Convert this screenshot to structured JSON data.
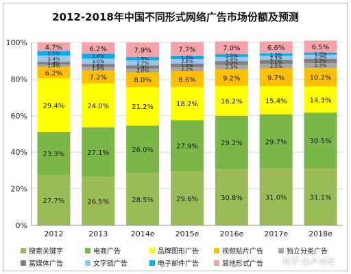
{
  "chart_data": {
    "type": "stacked-bar",
    "title": "2012-2018年中国不同形式网络广告市场份额及预测",
    "categories": [
      "2012",
      "2013",
      "2014e",
      "2015e",
      "2016e",
      "2017e",
      "2018e"
    ],
    "ylim": [
      0,
      100
    ],
    "yticks": [
      "0%",
      "20%",
      "40%",
      "60%",
      "80%",
      "100%"
    ],
    "grid": true,
    "legend_position": "bottom",
    "series": [
      {
        "name": "搜索关键字",
        "color": "#9bbb59",
        "values": [
          27.7,
          26.5,
          28.5,
          29.6,
          30.8,
          31.0,
          31.1
        ],
        "labels": [
          "27.7%",
          "26.5%",
          "28.5%",
          "29.6%",
          "30.8%",
          "31.0%",
          "31.1%"
        ]
      },
      {
        "name": "电商广告",
        "color": "#7ab648",
        "values": [
          23.3,
          27.1,
          26.0,
          27.9,
          29.2,
          29.7,
          30.5
        ],
        "labels": [
          "23.3%",
          "27.1%",
          "26.0%",
          "27.9%",
          "29.2%",
          "29.7%",
          "30.5%"
        ]
      },
      {
        "name": "品牌图形广告",
        "color": "#ffff00",
        "values": [
          29.4,
          24.0,
          21.2,
          18.2,
          16.2,
          15.4,
          14.3
        ],
        "labels": [
          "29.4%",
          "24.0%",
          "21.2%",
          "18.2%",
          "16.2%",
          "15.4%",
          "14.3%"
        ]
      },
      {
        "name": "视频贴片广告",
        "color": "#ffc000",
        "values": [
          6.2,
          7.2,
          8.0,
          8.6,
          9.2,
          9.7,
          10.2
        ],
        "labels": [
          "6.2%",
          "7.2%",
          "8.0%",
          "8.6%",
          "9.2%",
          "9.7%",
          "10.2%"
        ]
      },
      {
        "name": "独立分类广告",
        "color": "#a6a6a6",
        "values": [
          1.4,
          1.8,
          2.0,
          2.2,
          2.3,
          2.5,
          2.7
        ],
        "labels": [
          "1.4%",
          "1.8%",
          "2.0%",
          "2.2%",
          "2.3%",
          "2.5%",
          "2.7%"
        ]
      },
      {
        "name": "富媒体广告",
        "color": "#7f7f7f",
        "values": [
          1.4,
          1.6,
          1.8,
          1.9,
          2.0,
          2.1,
          2.2
        ],
        "labels": [
          "1.4%",
          "1.6%",
          "1.8%",
          "1.9%",
          "2.0%",
          "2.1%",
          "2.2%"
        ]
      },
      {
        "name": "文字链广告",
        "color": "#9dc3e6",
        "values": [
          3.4,
          3.0,
          2.7,
          2.6,
          2.4,
          2.3,
          2.3
        ],
        "labels": [
          "3.4%",
          "3.0%",
          "2.7%",
          "2.6%",
          "2.4%",
          "2.3%",
          "2.3%"
        ]
      },
      {
        "name": "电子邮件广告",
        "color": "#00b0f0",
        "values": [
          2.5,
          2.6,
          1.9,
          1.6,
          1.5,
          1.3,
          1.2
        ],
        "labels": [
          "2.5%",
          "2.6%",
          "1.9%",
          "1.6%",
          "1.5%",
          "1.3%",
          "1.2%"
        ]
      },
      {
        "name": "其他形式广告",
        "color": "#f4a3a8",
        "values": [
          4.7,
          6.2,
          7.9,
          7.7,
          7.0,
          6.6,
          6.5
        ],
        "labels": [
          "4.7%",
          "6.2%",
          "7.9%",
          "7.7%",
          "7.0%",
          "6.6%",
          "6.5%"
        ]
      }
    ]
  },
  "watermark": "知乎 @卢诗翰"
}
